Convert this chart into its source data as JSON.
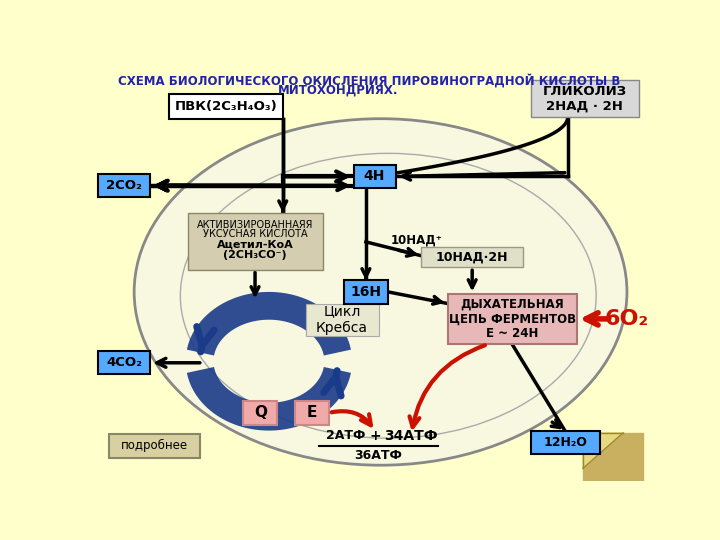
{
  "title_line1": "СХЕМА БИОЛОГИЧЕСКОГО ОКИСЛЕНИЯ ПИРОВИНОГРАДНОЙ КИСЛОТЫ В",
  "title_line2": "МИТОХОНДРИЯХ.",
  "bg_color": "#FFFFCC",
  "pvk_box_text": "ПВК(2С₃Н₄О₃)",
  "glycolysis_text": "ГЛИКОЛИЗ\n2НАД · 2Н",
  "co2_2_text": "2СО₂",
  "co2_4_text": "4СО₂",
  "h4_text": "4Н",
  "h16_text": "16Н",
  "nad10_text": "10НАД⁺",
  "nad10h_text": "10НАД·2Н",
  "activated_acid_line1": "АКТИВИЗИРОВАННАЯЯ",
  "activated_acid_line2": "УКСУСНАЯ КИСЛОТА",
  "activated_acid_line3": "Ацетил-КоА",
  "activated_acid_line4": "(2СН₃СО⁻)",
  "krebs_text": "Цикл\nКребса",
  "resp_chain_text": "ДЫХАТЕЛЬНАЯ\nЦЕПЬ ФЕРМЕНТОВ\nЕ ~ 24Н",
  "o2_text": "6О₂",
  "q_text": "Q",
  "e_text": "Е",
  "atf2_text": "2АТФ",
  "atf34_text": "34АТФ",
  "atf36_text": "36АТФ",
  "h2o_text": "12Н₂О",
  "more_text": "подробнее",
  "plus_text": "+",
  "blue_box_color": "#55AAFF",
  "pink_box_color": "#F0AAAA",
  "gray_box_color": "#D0CFC0",
  "resp_chain_color": "#E8B8B8",
  "white_box_color": "#FFFFFF",
  "dark_blue": "#1A3A8A",
  "red_arrow_color": "#CC1100",
  "glycolysis_box_color": "#D8D8D8",
  "acid_box_color": "#D4CDB0",
  "krebs_box_color": "#E8E8D0",
  "more_box_color": "#D8D0A0",
  "nad10h_box_color": "#E0E0C8",
  "corner_color": "#C8B060",
  "corner_fold_color": "#E8D880"
}
